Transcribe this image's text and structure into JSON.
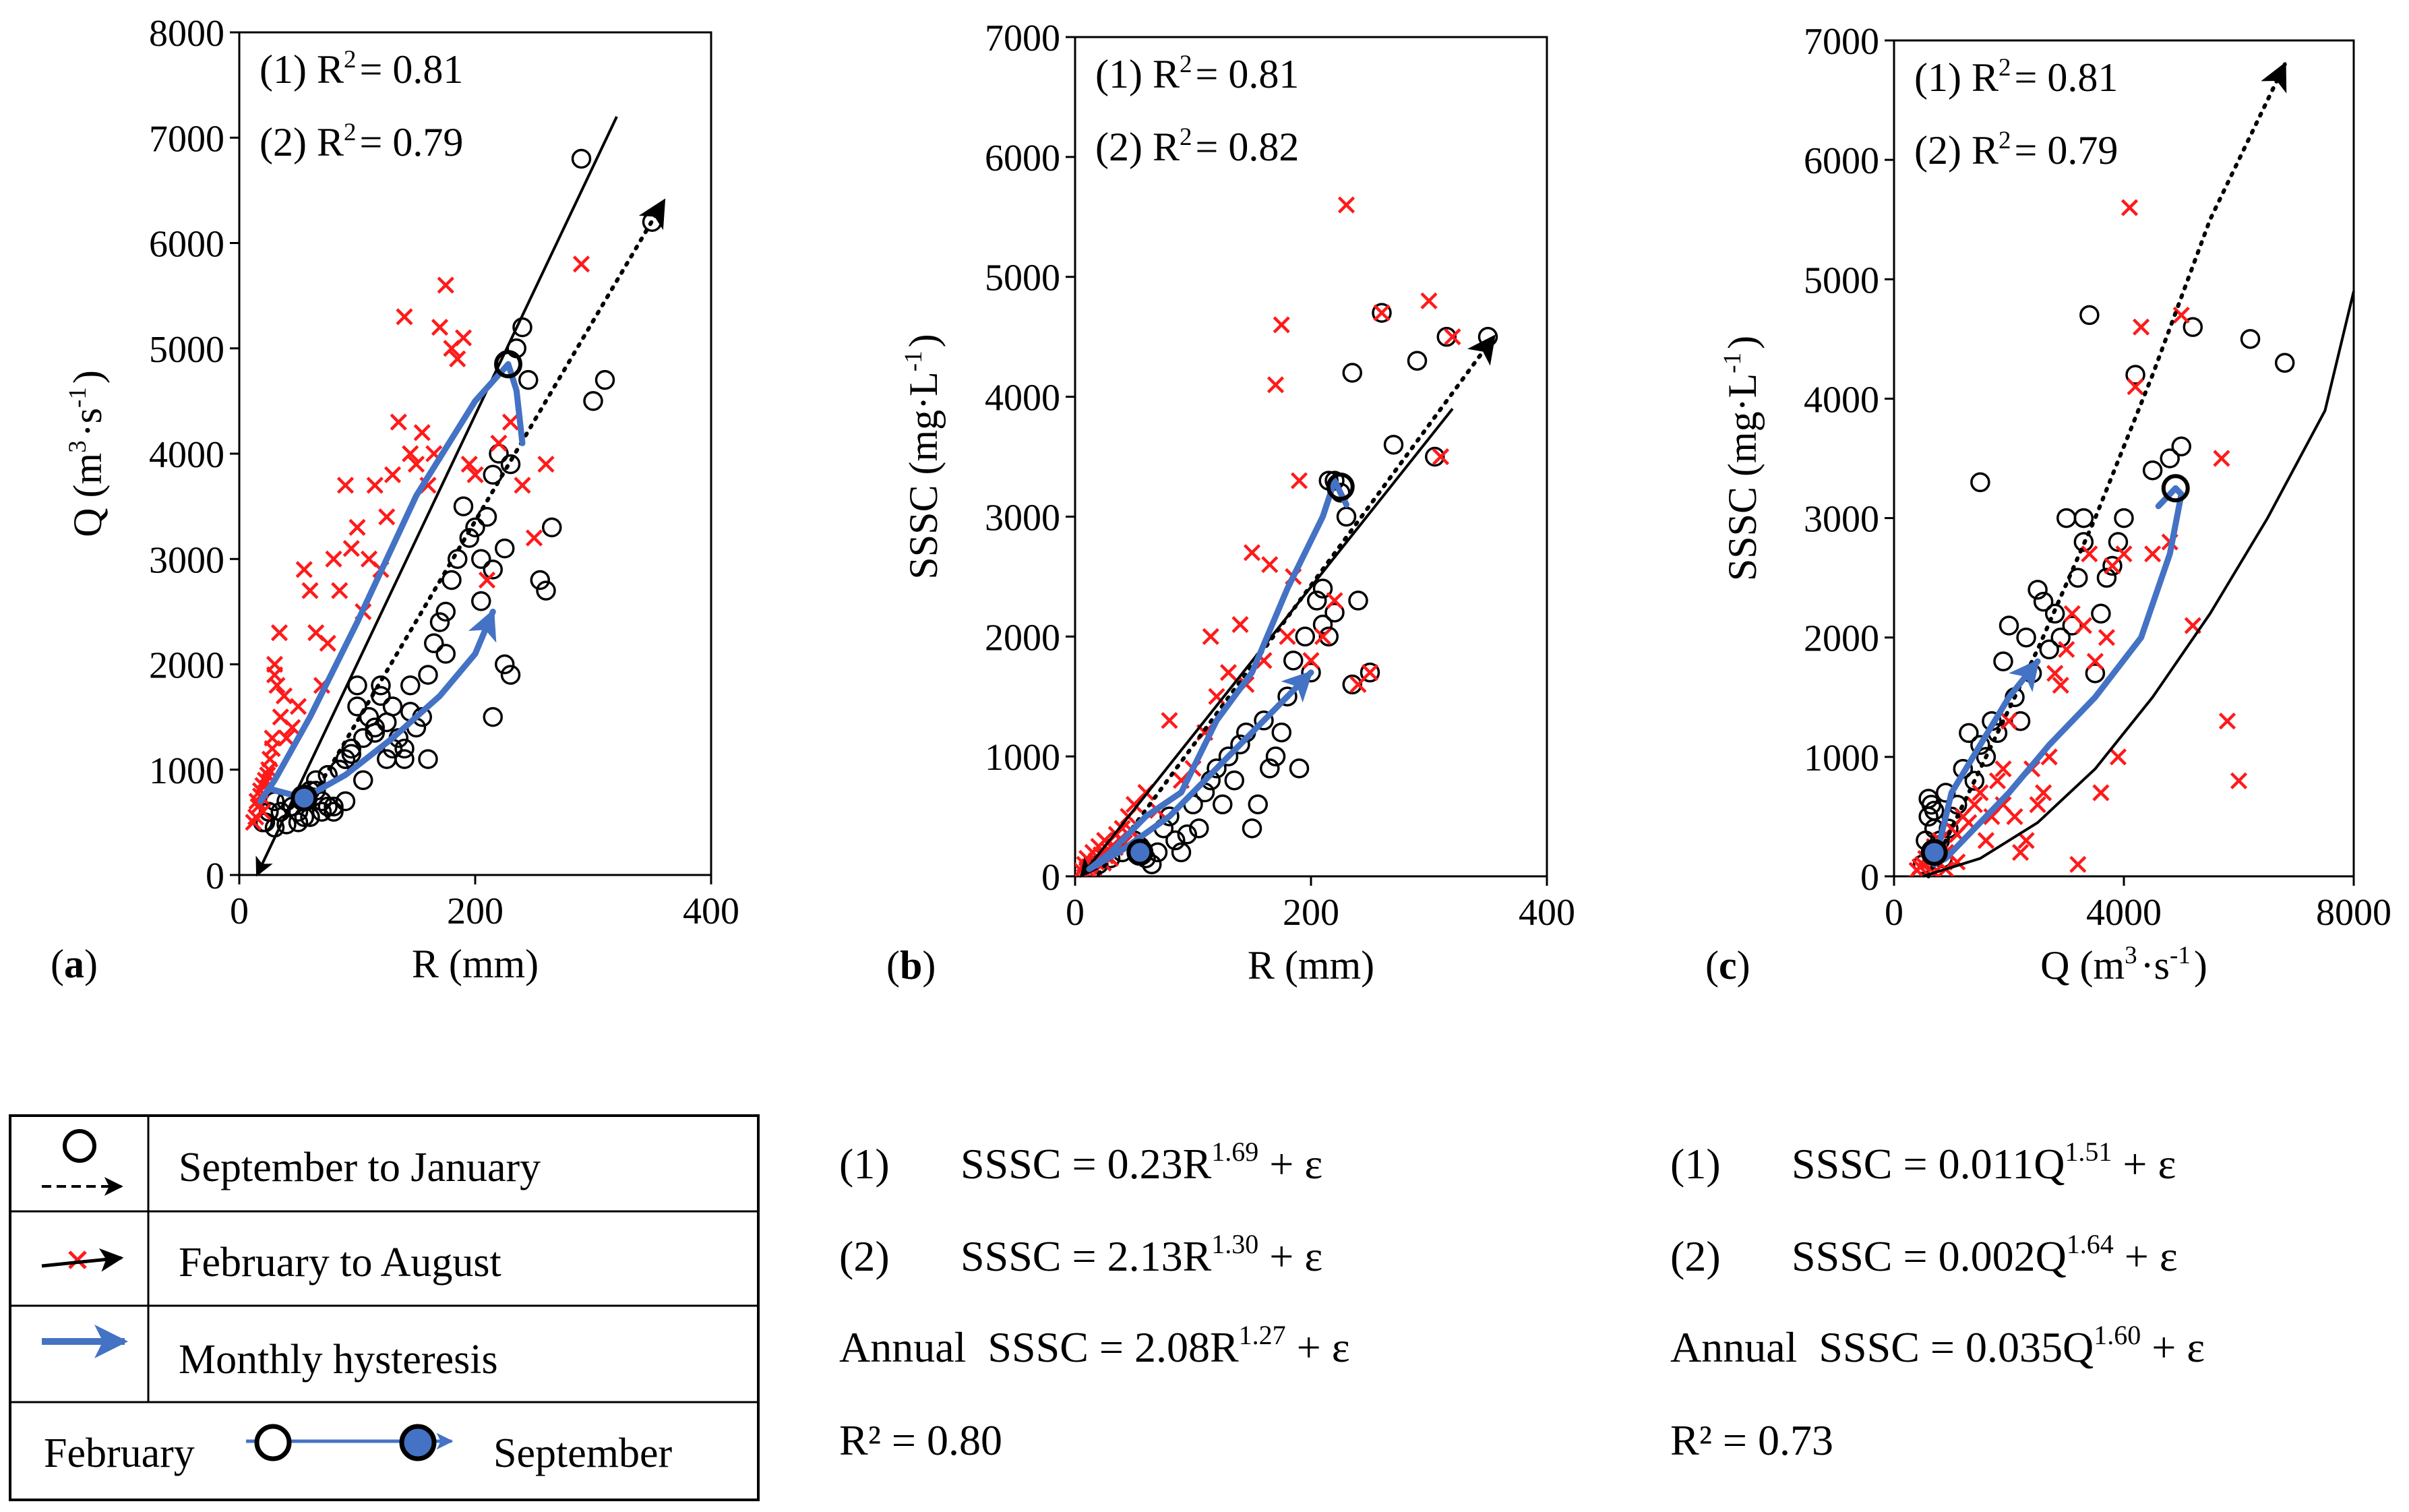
{
  "colors": {
    "red": "#ff1a1a",
    "blue": "#4472c4",
    "black": "#000000"
  },
  "legend": {
    "items": [
      {
        "label": "September to January"
      },
      {
        "label": "February to August"
      },
      {
        "label": "Monthly hysteresis"
      }
    ],
    "feb_label": "February",
    "sep_label": "September"
  },
  "equations": {
    "left": {
      "eq1": {
        "num": "(1)",
        "prefix": "SSSC = 0.23R",
        "exp": "1.69",
        "suffix": " + ε"
      },
      "eq2": {
        "num": "(2)",
        "prefix": "SSSC = 2.13R",
        "exp": "1.30",
        "suffix": " + ε"
      },
      "annual": {
        "label": "Annual",
        "prefix": "SSSC = 2.08R",
        "exp": "1.27",
        "suffix": " + ε"
      },
      "r2": "R² = 0.80"
    },
    "right": {
      "eq1": {
        "num": "(1)",
        "prefix": "SSSC = 0.011Q",
        "exp": "1.51",
        "suffix": " + ε"
      },
      "eq2": {
        "num": "(2)",
        "prefix": "SSSC = 0.002Q",
        "exp": "1.64",
        "suffix": " + ε"
      },
      "annual": {
        "label": "Annual",
        "prefix": "SSSC = 0.035Q",
        "exp": "1.60",
        "suffix": " + ε"
      },
      "r2": "R² = 0.73"
    }
  },
  "chart_data": [
    {
      "id": "a",
      "panel_label": "(a)",
      "type": "scatter",
      "xlabel": "R (mm)",
      "ylabel": "Q (m³·s⁻¹)",
      "xlim": [
        0,
        400
      ],
      "ylim": [
        0,
        8000
      ],
      "xticks": [
        0,
        200,
        400
      ],
      "yticks": [
        0,
        1000,
        2000,
        3000,
        4000,
        5000,
        6000,
        7000,
        8000
      ],
      "annotations": [
        "(1) R²= 0.81",
        "(2) R²= 0.79"
      ],
      "series_black": {
        "name": "September to January",
        "x": [
          20,
          25,
          30,
          40,
          45,
          50,
          55,
          60,
          65,
          70,
          75,
          80,
          85,
          90,
          95,
          100,
          105,
          110,
          115,
          120,
          125,
          130,
          135,
          140,
          145,
          150,
          155,
          160,
          165,
          170,
          175,
          180,
          185,
          190,
          195,
          200,
          205,
          210,
          215,
          220,
          225,
          230,
          235,
          240,
          245,
          255,
          260,
          265,
          290,
          300,
          310,
          350,
          215,
          225,
          230,
          160,
          140,
          130,
          120,
          100,
          90,
          80,
          70,
          60,
          50,
          40,
          35,
          30,
          25,
          22,
          55,
          65,
          75,
          85,
          95,
          105,
          115,
          125,
          145,
          175,
          205,
          215
        ],
        "y": [
          500,
          600,
          450,
          700,
          650,
          600,
          550,
          800,
          900,
          700,
          650,
          600,
          1000,
          1100,
          1200,
          1800,
          900,
          1500,
          1400,
          1800,
          1100,
          1600,
          1300,
          1200,
          1800,
          1400,
          1500,
          1900,
          2200,
          2400,
          2500,
          2800,
          3000,
          3500,
          3200,
          3300,
          3000,
          3400,
          3800,
          4000,
          3100,
          3900,
          5000,
          5200,
          4700,
          2800,
          2700,
          3300,
          6800,
          4500,
          4700,
          6200,
          1500,
          2000,
          1900,
          1100,
          1100,
          1200,
          1700,
          1600,
          700,
          650,
          600,
          550,
          500,
          480,
          600,
          700,
          600,
          500,
          750,
          800,
          950,
          1000,
          1150,
          1300,
          1350,
          1450,
          1550,
          2100,
          2600,
          2900
        ]
      },
      "series_red": {
        "name": "February to August",
        "x": [
          15,
          18,
          20,
          22,
          25,
          28,
          30,
          32,
          35,
          38,
          40,
          45,
          50,
          55,
          60,
          65,
          70,
          75,
          80,
          85,
          90,
          95,
          100,
          105,
          110,
          115,
          120,
          125,
          130,
          135,
          140,
          145,
          150,
          155,
          160,
          165,
          170,
          175,
          180,
          185,
          190,
          195,
          200,
          210,
          220,
          230,
          240,
          250,
          260,
          290,
          12,
          14,
          16,
          18,
          20,
          24,
          26,
          28,
          30,
          34
        ],
        "y": [
          700,
          800,
          600,
          900,
          1000,
          1200,
          2000,
          1800,
          1500,
          1700,
          1300,
          1400,
          1600,
          2900,
          2700,
          2300,
          1800,
          2200,
          3000,
          2700,
          3700,
          3100,
          3300,
          2500,
          3000,
          3700,
          2900,
          3400,
          3800,
          4300,
          5300,
          4000,
          3900,
          4200,
          3700,
          4000,
          5200,
          5600,
          5000,
          4900,
          5100,
          3900,
          3800,
          2800,
          4100,
          4300,
          3700,
          3200,
          3900,
          5800,
          500,
          550,
          650,
          750,
          850,
          950,
          1100,
          1300,
          1900,
          2300
        ]
      },
      "fit_solid": {
        "x": [
          15,
          320
        ],
        "y": [
          0,
          7200
        ]
      },
      "fit_dotted": {
        "x": [
          60,
          360
        ],
        "y": [
          700,
          6400
        ]
      },
      "hysteresis": {
        "x": [
          240,
          235,
          228,
          200,
          150,
          100,
          60,
          30,
          18,
          25,
          55,
          90,
          130,
          170,
          200,
          215
        ],
        "y": [
          4100,
          4600,
          4850,
          4500,
          3600,
          2400,
          1500,
          900,
          700,
          820,
          730,
          950,
          1300,
          1700,
          2100,
          2500
        ]
      },
      "hyst_start": {
        "x": 228,
        "y": 4850
      },
      "hyst_end": {
        "x": 55,
        "y": 730
      }
    },
    {
      "id": "b",
      "panel_label": "(b)",
      "type": "scatter",
      "xlabel": "R (mm)",
      "ylabel": "SSSC (mg·L⁻¹)",
      "xlim": [
        0,
        400
      ],
      "ylim": [
        0,
        7000
      ],
      "xticks": [
        0,
        200,
        400
      ],
      "yticks": [
        0,
        1000,
        2000,
        3000,
        4000,
        5000,
        6000,
        7000
      ],
      "annotations": [
        "(1) R²= 0.81",
        "(2) R²= 0.82"
      ],
      "series_black": {
        "name": "September to January",
        "x": [
          20,
          30,
          40,
          50,
          55,
          60,
          65,
          70,
          75,
          80,
          85,
          90,
          95,
          100,
          105,
          110,
          115,
          120,
          125,
          130,
          135,
          140,
          145,
          150,
          155,
          160,
          165,
          170,
          175,
          180,
          185,
          190,
          195,
          200,
          205,
          210,
          215,
          220,
          225,
          230,
          235,
          240,
          250,
          260,
          270,
          290,
          305,
          315,
          350,
          215,
          220,
          210,
          235
        ],
        "y": [
          100,
          150,
          200,
          300,
          250,
          150,
          100,
          200,
          400,
          500,
          300,
          200,
          350,
          600,
          400,
          700,
          800,
          900,
          600,
          1000,
          800,
          1100,
          1200,
          400,
          600,
          1300,
          900,
          1000,
          1200,
          1500,
          1800,
          900,
          2000,
          1700,
          2300,
          2400,
          2000,
          3300,
          3200,
          3000,
          4200,
          2300,
          1700,
          4700,
          3600,
          4300,
          3500,
          4500,
          4500,
          3300,
          2200,
          2100,
          1600
        ]
      },
      "series_red": {
        "name": "February to August",
        "x": [
          5,
          8,
          10,
          12,
          15,
          18,
          20,
          22,
          25,
          28,
          30,
          35,
          40,
          45,
          50,
          55,
          60,
          70,
          80,
          90,
          100,
          110,
          115,
          120,
          130,
          140,
          145,
          150,
          160,
          165,
          170,
          175,
          180,
          185,
          190,
          200,
          210,
          220,
          230,
          240,
          250,
          260,
          300,
          310,
          320,
          10,
          14,
          18,
          26,
          32,
          38,
          42,
          48,
          12,
          16,
          24,
          34
        ],
        "y": [
          50,
          100,
          150,
          80,
          200,
          120,
          250,
          180,
          300,
          220,
          150,
          350,
          400,
          500,
          600,
          300,
          700,
          550,
          1300,
          800,
          900,
          1200,
          2000,
          1500,
          1700,
          2100,
          1600,
          2700,
          1800,
          2600,
          4100,
          4600,
          2000,
          2500,
          3300,
          1800,
          2000,
          2300,
          5600,
          1600,
          1700,
          4700,
          4800,
          3500,
          4500,
          60,
          90,
          130,
          170,
          260,
          310,
          280,
          380,
          40,
          70,
          110,
          240
        ]
      },
      "fit_solid": {
        "x": [
          5,
          320
        ],
        "y": [
          0,
          3900
        ]
      },
      "fit_dotted": {
        "x": [
          20,
          355
        ],
        "y": [
          20,
          4500
        ]
      },
      "hysteresis": {
        "x": [
          230,
          220,
          210,
          180,
          150,
          120,
          90,
          60,
          30,
          12,
          40,
          80,
          120,
          160,
          200
        ],
        "y": [
          3100,
          3300,
          3000,
          2400,
          1700,
          1300,
          700,
          500,
          200,
          60,
          220,
          500,
          900,
          1300,
          1700
        ]
      },
      "hyst_start": {
        "x": 225,
        "y": 3250
      },
      "hyst_end": {
        "x": 55,
        "y": 200
      }
    },
    {
      "id": "c",
      "panel_label": "(c)",
      "type": "scatter",
      "xlabel": "Q (m³·s⁻¹)",
      "ylabel": "SSSC (mg·L⁻¹)",
      "xlim": [
        0,
        8000
      ],
      "ylim": [
        0,
        7000
      ],
      "xticks": [
        0,
        4000,
        8000
      ],
      "yticks": [
        0,
        1000,
        2000,
        3000,
        4000,
        5000,
        6000,
        7000
      ],
      "annotations": [
        "(1) R²= 0.81",
        "(2) R²= 0.79"
      ],
      "series_black": {
        "name": "September to January",
        "x": [
          500,
          550,
          600,
          650,
          700,
          750,
          800,
          850,
          900,
          950,
          1000,
          1100,
          1200,
          1300,
          1400,
          1500,
          1600,
          1700,
          1800,
          1900,
          2000,
          2100,
          2200,
          2300,
          2400,
          2500,
          2600,
          2700,
          2800,
          2900,
          3000,
          3100,
          3200,
          3300,
          3400,
          3500,
          3600,
          3700,
          3800,
          3900,
          4000,
          4200,
          4500,
          4800,
          5000,
          5200,
          6200,
          6800,
          1500,
          3300,
          600,
          700,
          800
        ],
        "y": [
          100,
          300,
          500,
          600,
          400,
          200,
          300,
          150,
          700,
          400,
          500,
          600,
          900,
          1200,
          800,
          1100,
          1000,
          1300,
          1200,
          1800,
          2100,
          1500,
          1300,
          2000,
          1700,
          2400,
          2300,
          1900,
          2200,
          2000,
          3000,
          2100,
          2500,
          2800,
          4700,
          1700,
          2200,
          2500,
          2600,
          2800,
          3000,
          4200,
          3400,
          3500,
          3600,
          4600,
          4500,
          4300,
          3300,
          3000,
          650,
          550,
          300
        ]
      },
      "series_red": {
        "name": "February to August",
        "x": [
          400,
          450,
          500,
          550,
          600,
          650,
          700,
          800,
          900,
          1000,
          1100,
          1200,
          1300,
          1400,
          1500,
          1600,
          1700,
          1800,
          1900,
          2000,
          2200,
          2400,
          2600,
          2800,
          3000,
          3200,
          3400,
          3600,
          3800,
          3900,
          4000,
          4100,
          4200,
          4300,
          4500,
          4800,
          5000,
          5200,
          5700,
          5800,
          6000,
          3700,
          3500,
          3300,
          3100,
          2900,
          2700,
          2500,
          2300,
          2100,
          1900,
          700,
          900,
          1100
        ],
        "y": [
          50,
          80,
          100,
          150,
          120,
          200,
          250,
          300,
          200,
          400,
          350,
          500,
          450,
          600,
          700,
          300,
          500,
          800,
          600,
          1300,
          200,
          900,
          700,
          1700,
          1900,
          100,
          2700,
          700,
          2600,
          1000,
          2700,
          5600,
          4100,
          4600,
          2700,
          2800,
          4700,
          2100,
          3500,
          1300,
          800,
          2000,
          1800,
          2100,
          2200,
          1600,
          1000,
          600,
          300,
          500,
          900,
          30,
          60,
          120
        ]
      },
      "fit_solid": {
        "x": [
          500,
          1500,
          2500,
          3500,
          4500,
          5500,
          6500,
          7500,
          8000
        ],
        "y": [
          0,
          150,
          450,
          900,
          1500,
          2200,
          3000,
          3900,
          4900
        ]
      },
      "fit_dotted": {
        "x": [
          600,
          1500,
          2500,
          3500,
          4500,
          5500,
          6800
        ],
        "y": [
          0,
          900,
          1900,
          3000,
          4200,
          5500,
          6800
        ]
      },
      "hysteresis": {
        "x": [
          4600,
          4900,
          5000,
          4800,
          4300,
          3500,
          2700,
          2000,
          1400,
          900,
          700,
          800,
          1000,
          1500,
          2000,
          2500
        ],
        "y": [
          3100,
          3250,
          3200,
          2700,
          2000,
          1500,
          1100,
          700,
          400,
          150,
          100,
          300,
          700,
          1100,
          1500,
          1800
        ]
      },
      "hyst_start": {
        "x": 4900,
        "y": 3250
      },
      "hyst_end": {
        "x": 700,
        "y": 200
      }
    }
  ]
}
